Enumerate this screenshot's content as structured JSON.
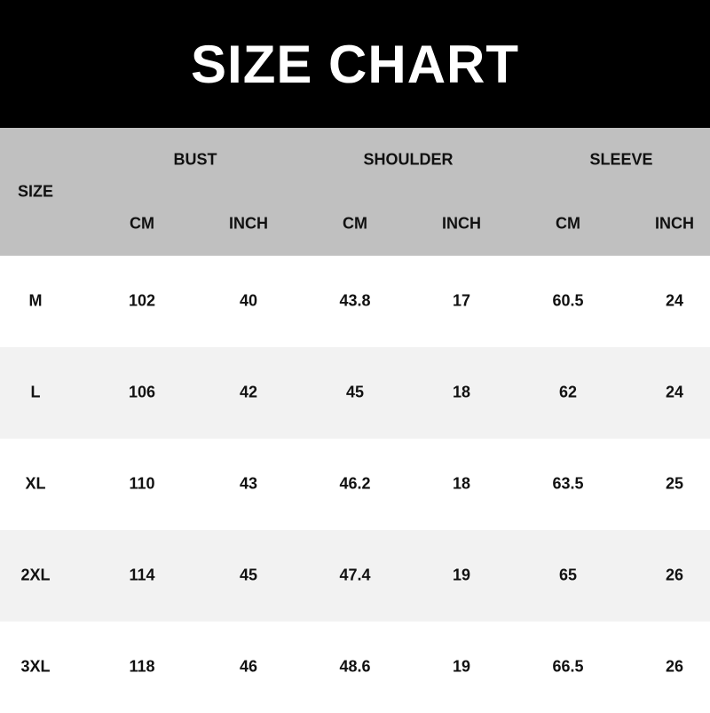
{
  "title": "SIZE CHART",
  "header": {
    "size": "SIZE",
    "groups": [
      "BUST",
      "SHOULDER",
      "SLEEVE"
    ],
    "units": [
      "CM",
      "INCH",
      "CM",
      "INCH",
      "CM",
      "INCH"
    ]
  },
  "rows": [
    [
      "M",
      "102",
      "40",
      "43.8",
      "17",
      "60.5",
      "24"
    ],
    [
      "L",
      "106",
      "42",
      "45",
      "18",
      "62",
      "24"
    ],
    [
      "XL",
      "110",
      "43",
      "46.2",
      "18",
      "63.5",
      "25"
    ],
    [
      "2XL",
      "114",
      "45",
      "47.4",
      "19",
      "65",
      "26"
    ],
    [
      "3XL",
      "118",
      "46",
      "48.6",
      "19",
      "66.5",
      "26"
    ]
  ],
  "colors": {
    "title_bg": "#000000",
    "header_bg": "#c0c0c0",
    "row_alt": "#f2f2f2",
    "row": "#ffffff"
  }
}
